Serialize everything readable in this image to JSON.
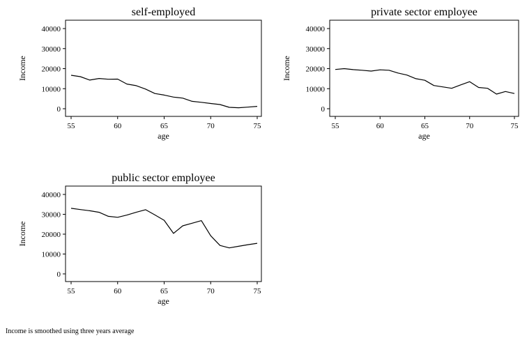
{
  "chart_data": [
    {
      "type": "line",
      "title": "self-employed",
      "xlabel": "age",
      "ylabel": "Income",
      "xlim": [
        55,
        75
      ],
      "ylim": [
        0,
        40000
      ],
      "xticks": [
        "55",
        "60",
        "65",
        "70",
        "75"
      ],
      "yticks": [
        "0",
        "10000",
        "20000",
        "30000",
        "40000"
      ],
      "grid": false,
      "x": [
        55,
        56,
        57,
        58,
        59,
        60,
        61,
        62,
        63,
        64,
        65,
        66,
        67,
        68,
        69,
        70,
        71,
        72,
        73,
        74,
        75
      ],
      "values": [
        16700,
        16000,
        14300,
        15100,
        14700,
        14800,
        12300,
        11500,
        9800,
        7600,
        6800,
        5800,
        5300,
        3700,
        3200,
        2600,
        2100,
        700,
        500,
        800,
        1200
      ]
    },
    {
      "type": "line",
      "title": "private sector employee",
      "xlabel": "age",
      "ylabel": "Income",
      "xlim": [
        55,
        75
      ],
      "ylim": [
        0,
        40000
      ],
      "xticks": [
        "55",
        "60",
        "65",
        "70",
        "75"
      ],
      "yticks": [
        "0",
        "10000",
        "20000",
        "30000",
        "40000"
      ],
      "grid": false,
      "x": [
        55,
        56,
        57,
        58,
        59,
        60,
        61,
        62,
        63,
        64,
        65,
        66,
        67,
        68,
        69,
        70,
        71,
        72,
        73,
        74,
        75
      ],
      "values": [
        19600,
        20000,
        19500,
        19200,
        18800,
        19400,
        19200,
        17800,
        16800,
        15000,
        14200,
        11600,
        10900,
        10200,
        11900,
        13500,
        10600,
        10200,
        7300,
        8600,
        7600
      ]
    },
    {
      "type": "line",
      "title": "public sector employee",
      "xlabel": "age",
      "ylabel": "Income",
      "xlim": [
        55,
        75
      ],
      "ylim": [
        0,
        40000
      ],
      "xticks": [
        "55",
        "60",
        "65",
        "70",
        "75"
      ],
      "yticks": [
        "0",
        "10000",
        "20000",
        "30000",
        "40000"
      ],
      "grid": false,
      "x": [
        55,
        56,
        57,
        58,
        59,
        60,
        61,
        62,
        63,
        64,
        65,
        66,
        67,
        68,
        69,
        70,
        71,
        72,
        73,
        74,
        75
      ],
      "values": [
        33000,
        32400,
        31800,
        31000,
        29000,
        28500,
        29600,
        31000,
        32300,
        29700,
        27000,
        20400,
        24200,
        25500,
        26800,
        19200,
        14300,
        13100,
        13900,
        14700,
        15400
      ]
    }
  ],
  "note": "Income is smoothed using three years average"
}
